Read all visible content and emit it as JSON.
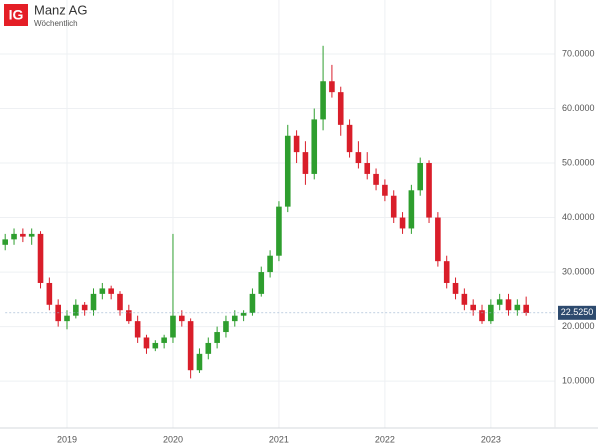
{
  "chart_data": {
    "type": "candlestick",
    "logo": "IG",
    "title": "Manz AG",
    "subtitle": "Wöchentlich",
    "categories": [
      null,
      null,
      null,
      null,
      null,
      null,
      null,
      "2019",
      null,
      null,
      null,
      null,
      null,
      null,
      null,
      null,
      null,
      null,
      null,
      "2020",
      null,
      null,
      null,
      null,
      null,
      null,
      null,
      null,
      null,
      null,
      null,
      "2021",
      null,
      null,
      null,
      null,
      null,
      null,
      null,
      null,
      null,
      null,
      null,
      "2022",
      null,
      null,
      null,
      null,
      null,
      null,
      null,
      null,
      null,
      null,
      null,
      "2023",
      null,
      null,
      null,
      null
    ],
    "open": [
      35,
      36,
      37,
      36.5,
      37,
      28,
      24,
      21,
      22,
      24,
      23,
      26,
      27,
      26,
      23,
      21,
      18,
      16,
      17,
      18,
      22,
      21,
      12,
      15,
      17,
      19,
      21,
      22,
      22.5,
      26,
      30,
      33,
      42,
      55,
      52,
      48,
      58,
      65,
      63,
      57,
      52,
      50,
      48,
      46,
      44,
      40,
      38,
      45,
      50,
      40,
      32,
      28,
      26,
      24,
      23,
      21,
      24,
      25,
      23,
      24
    ],
    "high": [
      37,
      38,
      38,
      38,
      37.5,
      29,
      25,
      23,
      25,
      24.5,
      27,
      28,
      27.5,
      26.5,
      24,
      22,
      18.5,
      17.5,
      18.5,
      37,
      23,
      21.5,
      16,
      18,
      20,
      22,
      23,
      23,
      27,
      31,
      34,
      43,
      57,
      56,
      54,
      60,
      71.5,
      68,
      64,
      58,
      54,
      52,
      49,
      47,
      45,
      41,
      46,
      51,
      50.5,
      41,
      33,
      29,
      27,
      25,
      24,
      25,
      26,
      26,
      25,
      25.5
    ],
    "low": [
      34,
      35,
      35.5,
      35,
      27,
      23,
      20,
      19.5,
      21.5,
      22,
      22,
      25,
      25,
      22,
      20.5,
      17,
      15,
      15.5,
      16,
      17,
      20,
      10.5,
      11.5,
      14,
      16,
      18,
      20,
      21,
      22,
      25.5,
      29,
      32,
      41,
      50,
      46,
      47,
      56,
      62,
      55,
      51,
      49,
      47,
      45,
      43,
      39,
      37,
      37,
      44,
      39,
      31,
      27,
      25,
      23,
      22,
      20.5,
      20.5,
      23,
      22,
      22,
      22
    ],
    "close": [
      36,
      37,
      36.5,
      37,
      28,
      24,
      21,
      22,
      24,
      23,
      26,
      27,
      26,
      23,
      21,
      18,
      16,
      17,
      18,
      22,
      21,
      12,
      15,
      17,
      19,
      21,
      22,
      22.5,
      26,
      30,
      33,
      42,
      55,
      52,
      48,
      58,
      65,
      63,
      57,
      52,
      50,
      48,
      46,
      44,
      40,
      38,
      45,
      50,
      40,
      32,
      28,
      26,
      24,
      23,
      21,
      24,
      25,
      23,
      24,
      22.5
    ],
    "up_color": "#2e9e2e",
    "down_color": "#d91e2a",
    "ylim": [
      1.4,
      79.9
    ],
    "yticks": [
      {
        "value": 10,
        "label": "10.0000"
      },
      {
        "value": 20,
        "label": "20.0000"
      },
      {
        "value": 30,
        "label": "30.0000"
      },
      {
        "value": 40,
        "label": "40.0000"
      },
      {
        "value": 50,
        "label": "50.0000"
      },
      {
        "value": 60,
        "label": "60.0000"
      },
      {
        "value": 70,
        "label": "70.0000"
      }
    ],
    "last_price": {
      "value": 22.525,
      "label": "22.5250"
    },
    "grid": true
  }
}
